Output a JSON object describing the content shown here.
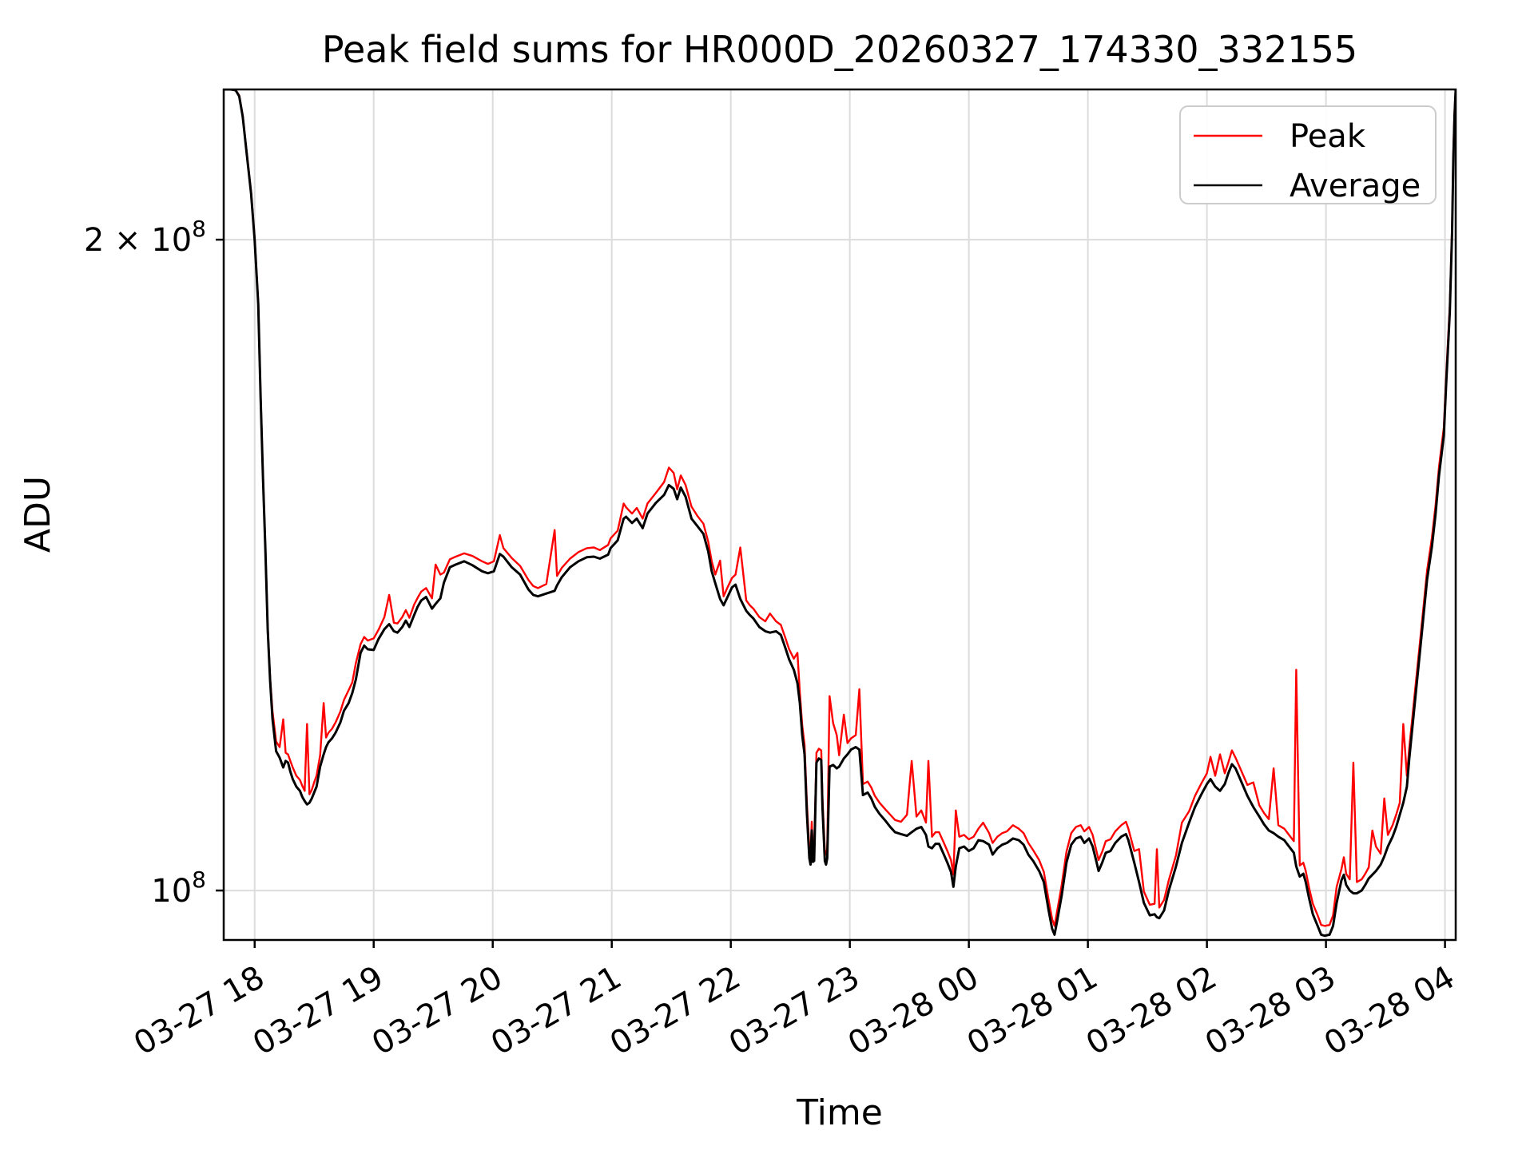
{
  "figure": {
    "title": "Peak field sums for HR000D_20260327_174330_332155",
    "xlabel": "Time",
    "ylabel": "ADU",
    "background": "#ffffff"
  },
  "legend": {
    "entries": [
      {
        "label": "Peak",
        "color": "#ff0000"
      },
      {
        "label": "Average",
        "color": "#000000"
      }
    ]
  },
  "chart_data": {
    "type": "line",
    "title": "Peak field sums for HR000D_20260327_174330_332155",
    "xlabel": "Time",
    "ylabel": "ADU",
    "y_scale": "log",
    "value_unit": "1e8 ADU",
    "time_unit": "hours since 03-27 00:00 (24+ means 03-28)",
    "grid": true,
    "legend_position": "upper right",
    "x_range": [
      17.74,
      28.09
    ],
    "y_range": [
      0.9487,
      2.347
    ],
    "x_ticks": [
      {
        "hour": 18,
        "label": "03-27 18"
      },
      {
        "hour": 19,
        "label": "03-27 19"
      },
      {
        "hour": 20,
        "label": "03-27 20"
      },
      {
        "hour": 21,
        "label": "03-27 21"
      },
      {
        "hour": 22,
        "label": "03-27 22"
      },
      {
        "hour": 23,
        "label": "03-27 23"
      },
      {
        "hour": 24,
        "label": "03-28 00"
      },
      {
        "hour": 25,
        "label": "03-28 01"
      },
      {
        "hour": 26,
        "label": "03-28 02"
      },
      {
        "hour": 27,
        "label": "03-28 03"
      },
      {
        "hour": 28,
        "label": "03-28 04"
      }
    ],
    "y_ticks": [
      {
        "value": 1.0,
        "text": "10",
        "sup": "8"
      },
      {
        "value": 2.0,
        "text": "2 × 10",
        "sup": "8"
      }
    ],
    "series": [
      {
        "name": "Peak",
        "color": "#ff0000",
        "width": 2.4
      },
      {
        "name": "Average",
        "color": "#000000",
        "width": 3.0
      }
    ],
    "points": [
      [
        17.74,
        2.347,
        2.347
      ],
      [
        17.8,
        2.347,
        2.347
      ],
      [
        17.84,
        2.345,
        2.346
      ],
      [
        17.87,
        2.33,
        2.332
      ],
      [
        17.9,
        2.28,
        2.283
      ],
      [
        17.93,
        2.2,
        2.204
      ],
      [
        17.97,
        2.1,
        2.104
      ],
      [
        18.0,
        2.0,
        2.004
      ],
      [
        18.03,
        1.868,
        1.872
      ],
      [
        18.05,
        1.69,
        1.694
      ],
      [
        18.07,
        1.55,
        1.554
      ],
      [
        18.09,
        1.44,
        1.444
      ],
      [
        18.11,
        1.32,
        1.324
      ],
      [
        18.13,
        1.25,
        1.254
      ],
      [
        18.15,
        1.2,
        1.21
      ],
      [
        18.18,
        1.16,
        1.172
      ],
      [
        18.21,
        1.152,
        1.165
      ],
      [
        18.24,
        1.14,
        1.2
      ],
      [
        18.26,
        1.148,
        1.158
      ],
      [
        18.28,
        1.146,
        1.156
      ],
      [
        18.3,
        1.135,
        1.148
      ],
      [
        18.32,
        1.126,
        1.14
      ],
      [
        18.35,
        1.117,
        1.13
      ],
      [
        18.38,
        1.112,
        1.125
      ],
      [
        18.4,
        1.105,
        1.118
      ],
      [
        18.42,
        1.1,
        1.112
      ],
      [
        18.44,
        1.096,
        1.194
      ],
      [
        18.46,
        1.098,
        1.108
      ],
      [
        18.48,
        1.103,
        1.113
      ],
      [
        18.5,
        1.11,
        1.122
      ],
      [
        18.52,
        1.117,
        1.13
      ],
      [
        18.55,
        1.141,
        1.155
      ],
      [
        18.58,
        1.156,
        1.221
      ],
      [
        18.6,
        1.165,
        1.177
      ],
      [
        18.62,
        1.171,
        1.183
      ],
      [
        18.65,
        1.176,
        1.188
      ],
      [
        18.68,
        1.183,
        1.196
      ],
      [
        18.72,
        1.196,
        1.21
      ],
      [
        18.75,
        1.211,
        1.225
      ],
      [
        18.79,
        1.221,
        1.238
      ],
      [
        18.82,
        1.234,
        1.248
      ],
      [
        18.85,
        1.252,
        1.274
      ],
      [
        18.89,
        1.288,
        1.3
      ],
      [
        18.92,
        1.298,
        1.31
      ],
      [
        18.95,
        1.293,
        1.305
      ],
      [
        19.0,
        1.292,
        1.308
      ],
      [
        19.04,
        1.307,
        1.32
      ],
      [
        19.09,
        1.321,
        1.338
      ],
      [
        19.13,
        1.328,
        1.37
      ],
      [
        19.17,
        1.318,
        1.33
      ],
      [
        19.2,
        1.316,
        1.329
      ],
      [
        19.24,
        1.324,
        1.338
      ],
      [
        19.27,
        1.333,
        1.348
      ],
      [
        19.3,
        1.324,
        1.337
      ],
      [
        19.34,
        1.341,
        1.356
      ],
      [
        19.37,
        1.353,
        1.366
      ],
      [
        19.4,
        1.362,
        1.375
      ],
      [
        19.44,
        1.367,
        1.38
      ],
      [
        19.49,
        1.35,
        1.365
      ],
      [
        19.52,
        1.357,
        1.415
      ],
      [
        19.56,
        1.365,
        1.4
      ],
      [
        19.59,
        1.388,
        1.403
      ],
      [
        19.64,
        1.411,
        1.423
      ],
      [
        19.69,
        1.415,
        1.427
      ],
      [
        19.76,
        1.42,
        1.432
      ],
      [
        19.83,
        1.414,
        1.428
      ],
      [
        19.91,
        1.405,
        1.42
      ],
      [
        19.96,
        1.402,
        1.416
      ],
      [
        20.01,
        1.405,
        1.42
      ],
      [
        20.06,
        1.431,
        1.46
      ],
      [
        20.09,
        1.427,
        1.44
      ],
      [
        20.16,
        1.411,
        1.425
      ],
      [
        20.23,
        1.4,
        1.413
      ],
      [
        20.3,
        1.378,
        1.392
      ],
      [
        20.34,
        1.37,
        1.383
      ],
      [
        20.38,
        1.368,
        1.38
      ],
      [
        20.45,
        1.372,
        1.386
      ],
      [
        20.52,
        1.376,
        1.468
      ],
      [
        20.54,
        1.384,
        1.398
      ],
      [
        20.58,
        1.396,
        1.41
      ],
      [
        20.65,
        1.411,
        1.424
      ],
      [
        20.72,
        1.42,
        1.434
      ],
      [
        20.79,
        1.426,
        1.44
      ],
      [
        20.85,
        1.427,
        1.441
      ],
      [
        20.9,
        1.424,
        1.437
      ],
      [
        20.97,
        1.43,
        1.445
      ],
      [
        20.99,
        1.44,
        1.455
      ],
      [
        21.05,
        1.452,
        1.467
      ],
      [
        21.1,
        1.486,
        1.51
      ],
      [
        21.12,
        1.489,
        1.504
      ],
      [
        21.17,
        1.479,
        1.494
      ],
      [
        21.21,
        1.486,
        1.503
      ],
      [
        21.26,
        1.471,
        1.486
      ],
      [
        21.3,
        1.494,
        1.51
      ],
      [
        21.37,
        1.511,
        1.527
      ],
      [
        21.44,
        1.524,
        1.545
      ],
      [
        21.48,
        1.54,
        1.569
      ],
      [
        21.52,
        1.534,
        1.56
      ],
      [
        21.55,
        1.517,
        1.533
      ],
      [
        21.58,
        1.536,
        1.556
      ],
      [
        21.62,
        1.521,
        1.54
      ],
      [
        21.67,
        1.486,
        1.505
      ],
      [
        21.72,
        1.474,
        1.49
      ],
      [
        21.77,
        1.462,
        1.478
      ],
      [
        21.81,
        1.435,
        1.45
      ],
      [
        21.84,
        1.405,
        1.42
      ],
      [
        21.87,
        1.387,
        1.4
      ],
      [
        21.91,
        1.364,
        1.421
      ],
      [
        21.94,
        1.355,
        1.368
      ],
      [
        21.97,
        1.366,
        1.38
      ],
      [
        22.01,
        1.381,
        1.395
      ],
      [
        22.04,
        1.385,
        1.4
      ],
      [
        22.08,
        1.364,
        1.441
      ],
      [
        22.13,
        1.347,
        1.362
      ],
      [
        22.16,
        1.341,
        1.355
      ],
      [
        22.19,
        1.336,
        1.35
      ],
      [
        22.24,
        1.324,
        1.338
      ],
      [
        22.29,
        1.318,
        1.332
      ],
      [
        22.33,
        1.316,
        1.343
      ],
      [
        22.38,
        1.318,
        1.332
      ],
      [
        22.42,
        1.313,
        1.327
      ],
      [
        22.46,
        1.294,
        1.308
      ],
      [
        22.49,
        1.279,
        1.293
      ],
      [
        22.53,
        1.265,
        1.28
      ],
      [
        22.56,
        1.247,
        1.288
      ],
      [
        22.58,
        1.221,
        1.235
      ],
      [
        22.6,
        1.18,
        1.192
      ],
      [
        22.62,
        1.156,
        1.168
      ],
      [
        22.64,
        1.084,
        1.096
      ],
      [
        22.66,
        1.035,
        1.046
      ],
      [
        22.67,
        1.028,
        1.038
      ],
      [
        22.68,
        1.066,
        1.076
      ],
      [
        22.69,
        1.031,
        1.042
      ],
      [
        22.7,
        1.032,
        1.043
      ],
      [
        22.72,
        1.146,
        1.158
      ],
      [
        22.74,
        1.151,
        1.163
      ],
      [
        22.76,
        1.149,
        1.161
      ],
      [
        22.77,
        1.093,
        1.104
      ],
      [
        22.79,
        1.032,
        1.043
      ],
      [
        22.8,
        1.028,
        1.039
      ],
      [
        22.81,
        1.035,
        1.046
      ],
      [
        22.83,
        1.141,
        1.23
      ],
      [
        22.86,
        1.143,
        1.195
      ],
      [
        22.89,
        1.139,
        1.18
      ],
      [
        22.91,
        1.141,
        1.155
      ],
      [
        22.95,
        1.151,
        1.206
      ],
      [
        22.98,
        1.156,
        1.17
      ],
      [
        23.01,
        1.162,
        1.176
      ],
      [
        23.05,
        1.165,
        1.18
      ],
      [
        23.08,
        1.162,
        1.239
      ],
      [
        23.11,
        1.107,
        1.12
      ],
      [
        23.15,
        1.11,
        1.123
      ],
      [
        23.18,
        1.103,
        1.116
      ],
      [
        23.21,
        1.093,
        1.106
      ],
      [
        23.25,
        1.085,
        1.098
      ],
      [
        23.3,
        1.077,
        1.09
      ],
      [
        23.34,
        1.07,
        1.084
      ],
      [
        23.38,
        1.064,
        1.078
      ],
      [
        23.43,
        1.062,
        1.076
      ],
      [
        23.48,
        1.06,
        1.084
      ],
      [
        23.52,
        1.064,
        1.148
      ],
      [
        23.56,
        1.068,
        1.082
      ],
      [
        23.6,
        1.07,
        1.089
      ],
      [
        23.64,
        1.061,
        1.075
      ],
      [
        23.66,
        1.048,
        1.148
      ],
      [
        23.69,
        1.046,
        1.059
      ],
      [
        23.72,
        1.051,
        1.064
      ],
      [
        23.75,
        1.051,
        1.064
      ],
      [
        23.79,
        1.039,
        1.052
      ],
      [
        23.82,
        1.03,
        1.043
      ],
      [
        23.85,
        1.02,
        1.033
      ],
      [
        23.87,
        1.004,
        1.017
      ],
      [
        23.89,
        1.026,
        1.089
      ],
      [
        23.92,
        1.046,
        1.059
      ],
      [
        23.96,
        1.048,
        1.061
      ],
      [
        24.0,
        1.043,
        1.056
      ],
      [
        24.04,
        1.046,
        1.059
      ],
      [
        24.08,
        1.055,
        1.068
      ],
      [
        24.12,
        1.054,
        1.075
      ],
      [
        24.17,
        1.05,
        1.063
      ],
      [
        24.2,
        1.039,
        1.052
      ],
      [
        24.24,
        1.046,
        1.059
      ],
      [
        24.28,
        1.05,
        1.063
      ],
      [
        24.32,
        1.052,
        1.065
      ],
      [
        24.37,
        1.057,
        1.072
      ],
      [
        24.42,
        1.055,
        1.068
      ],
      [
        24.46,
        1.05,
        1.063
      ],
      [
        24.5,
        1.039,
        1.052
      ],
      [
        24.54,
        1.032,
        1.044
      ],
      [
        24.59,
        1.021,
        1.033
      ],
      [
        24.63,
        1.009,
        1.02
      ],
      [
        24.67,
        0.979,
        0.99
      ],
      [
        24.7,
        0.96,
        0.97
      ],
      [
        24.72,
        0.954,
        0.963
      ],
      [
        24.74,
        0.967,
        0.977
      ],
      [
        24.78,
        0.995,
        1.006
      ],
      [
        24.82,
        1.03,
        1.042
      ],
      [
        24.86,
        1.05,
        1.063
      ],
      [
        24.9,
        1.057,
        1.07
      ],
      [
        24.94,
        1.059,
        1.072
      ],
      [
        24.97,
        1.052,
        1.065
      ],
      [
        25.01,
        1.057,
        1.07
      ],
      [
        25.04,
        1.048,
        1.061
      ],
      [
        25.07,
        1.032,
        1.044
      ],
      [
        25.09,
        1.021,
        1.033
      ],
      [
        25.12,
        1.03,
        1.042
      ],
      [
        25.15,
        1.041,
        1.054
      ],
      [
        25.19,
        1.043,
        1.056
      ],
      [
        25.23,
        1.052,
        1.065
      ],
      [
        25.28,
        1.059,
        1.072
      ],
      [
        25.32,
        1.062,
        1.076
      ],
      [
        25.34,
        1.055,
        1.068
      ],
      [
        25.39,
        1.03,
        1.043
      ],
      [
        25.43,
        1.009,
        1.045
      ],
      [
        25.47,
        0.987,
        0.999
      ],
      [
        25.52,
        0.974,
        0.985
      ],
      [
        25.56,
        0.975,
        0.986
      ],
      [
        25.58,
        0.972,
        1.045
      ],
      [
        25.6,
        0.971,
        0.982
      ],
      [
        25.64,
        0.979,
        0.99
      ],
      [
        25.68,
        1.0,
        1.011
      ],
      [
        25.74,
        1.026,
        1.038
      ],
      [
        25.79,
        1.052,
        1.075
      ],
      [
        25.85,
        1.075,
        1.088
      ],
      [
        25.9,
        1.093,
        1.106
      ],
      [
        25.95,
        1.107,
        1.12
      ],
      [
        26.0,
        1.12,
        1.133
      ],
      [
        26.03,
        1.126,
        1.153
      ],
      [
        26.07,
        1.117,
        1.13
      ],
      [
        26.11,
        1.112,
        1.156
      ],
      [
        26.15,
        1.12,
        1.133
      ],
      [
        26.18,
        1.133,
        1.146
      ],
      [
        26.21,
        1.144,
        1.161
      ],
      [
        26.24,
        1.139,
        1.152
      ],
      [
        26.28,
        1.126,
        1.139
      ],
      [
        26.34,
        1.106,
        1.119
      ],
      [
        26.39,
        1.093,
        1.122
      ],
      [
        26.44,
        1.082,
        1.095
      ],
      [
        26.48,
        1.073,
        1.086
      ],
      [
        26.52,
        1.066,
        1.079
      ],
      [
        26.56,
        1.063,
        1.139
      ],
      [
        26.6,
        1.059,
        1.072
      ],
      [
        26.65,
        1.055,
        1.068
      ],
      [
        26.69,
        1.048,
        1.061
      ],
      [
        26.73,
        1.041,
        1.054
      ],
      [
        26.75,
        1.026,
        1.265
      ],
      [
        26.78,
        1.015,
        1.027
      ],
      [
        26.81,
        1.018,
        1.03
      ],
      [
        26.83,
        1.009,
        1.021
      ],
      [
        26.86,
        0.991,
        1.002
      ],
      [
        26.89,
        0.975,
        0.986
      ],
      [
        26.93,
        0.963,
        0.974
      ],
      [
        26.96,
        0.954,
        0.964
      ],
      [
        26.99,
        0.953,
        0.963
      ],
      [
        27.03,
        0.954,
        0.964
      ],
      [
        27.06,
        0.963,
        0.974
      ],
      [
        27.09,
        0.987,
        1.004
      ],
      [
        27.13,
        1.011,
        1.023
      ],
      [
        27.15,
        1.017,
        1.036
      ],
      [
        27.17,
        1.006,
        1.018
      ],
      [
        27.2,
        1.0,
        1.012
      ],
      [
        27.23,
        0.997,
        1.146
      ],
      [
        27.26,
        0.997,
        1.009
      ],
      [
        27.3,
        1.0,
        1.012
      ],
      [
        27.33,
        1.006,
        1.018
      ],
      [
        27.36,
        1.013,
        1.025
      ],
      [
        27.39,
        1.017,
        1.066
      ],
      [
        27.42,
        1.021,
        1.048
      ],
      [
        27.46,
        1.028,
        1.04
      ],
      [
        27.49,
        1.037,
        1.103
      ],
      [
        27.52,
        1.048,
        1.061
      ],
      [
        27.56,
        1.059,
        1.072
      ],
      [
        27.59,
        1.07,
        1.084
      ],
      [
        27.62,
        1.084,
        1.098
      ],
      [
        27.65,
        1.098,
        1.194
      ],
      [
        27.68,
        1.117,
        1.13
      ],
      [
        27.7,
        1.151,
        1.164
      ],
      [
        27.73,
        1.196,
        1.209
      ],
      [
        27.76,
        1.242,
        1.255
      ],
      [
        27.79,
        1.29,
        1.303
      ],
      [
        27.82,
        1.341,
        1.354
      ],
      [
        27.85,
        1.393,
        1.406
      ],
      [
        27.89,
        1.442,
        1.456
      ],
      [
        27.92,
        1.492,
        1.506
      ],
      [
        27.95,
        1.556,
        1.57
      ],
      [
        27.99,
        1.623,
        1.637
      ],
      [
        28.01,
        1.716,
        1.73
      ],
      [
        28.04,
        1.851,
        1.864
      ],
      [
        28.06,
        2.017,
        2.03
      ],
      [
        28.07,
        2.177,
        2.19
      ],
      [
        28.08,
        2.28,
        2.292
      ],
      [
        28.09,
        2.347,
        2.35
      ]
    ],
    "style": {
      "grid_color": "#dcdcdc",
      "spine_color": "#000000",
      "legend_border_color": "#cccccc"
    }
  }
}
